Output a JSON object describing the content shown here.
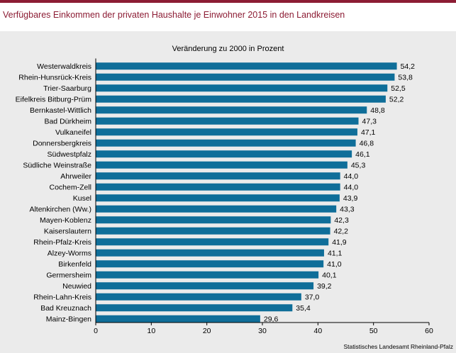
{
  "header": {
    "title": "Verfügbares Einkommen der privaten Haushalte je Einwohner 2015 in den Landkreisen"
  },
  "footer": {
    "source": "Statistisches Landesamt Rheinland-Pfalz"
  },
  "colors": {
    "accent": "#8c1c34",
    "bar": "#0f6e99",
    "panel": "#ebebeb"
  },
  "chart_data": {
    "type": "bar",
    "orientation": "horizontal",
    "title": "Veränderung zu 2000 in Prozent",
    "categories": [
      "Westerwaldkreis",
      "Rhein-Hunsrück-Kreis",
      "Trier-Saarburg",
      "Eifelkreis Bitburg-Prüm",
      "Bernkastel-Wittlich",
      "Bad Dürkheim",
      "Vulkaneifel",
      "Donnersbergkreis",
      "Südwestpfalz",
      "Südliche Weinstraße",
      "Ahrweiler",
      "Cochem-Zell",
      "Kusel",
      "Altenkirchen (Ww.)",
      "Mayen-Koblenz",
      "Kaiserslautern",
      "Rhein-Pfalz-Kreis",
      "Alzey-Worms",
      "Birkenfeld",
      "Germersheim",
      "Neuwied",
      "Rhein-Lahn-Kreis",
      "Bad Kreuznach",
      "Mainz-Bingen"
    ],
    "values": [
      54.2,
      53.8,
      52.5,
      52.2,
      48.8,
      47.3,
      47.1,
      46.8,
      46.1,
      45.3,
      44.0,
      44.0,
      43.9,
      43.3,
      42.3,
      42.2,
      41.9,
      41.1,
      41.0,
      40.1,
      39.2,
      37.0,
      35.4,
      29.6
    ],
    "value_labels": [
      "54,2",
      "53,8",
      "52,5",
      "52,2",
      "48,8",
      "47,3",
      "47,1",
      "46,8",
      "46,1",
      "45,3",
      "44,0",
      "44,0",
      "43,9",
      "43,3",
      "42,3",
      "42,2",
      "41,9",
      "41,1",
      "41,0",
      "40,1",
      "39,2",
      "37,0",
      "35,4",
      "29,6"
    ],
    "xlim": [
      0,
      60
    ],
    "xticks": [
      "0",
      "10",
      "20",
      "30",
      "40",
      "50",
      "60"
    ],
    "grid": false
  }
}
